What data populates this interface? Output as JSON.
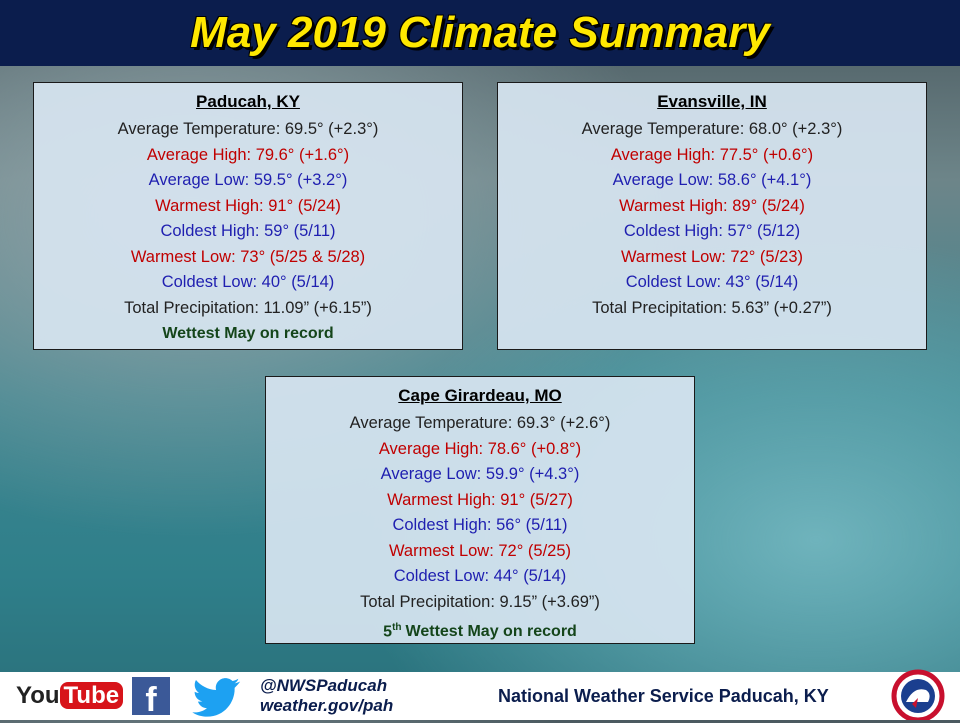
{
  "header": {
    "title": "May 2019 Climate Summary"
  },
  "stations": [
    {
      "name": "Paducah, KY",
      "lines": [
        {
          "text": "Average Temperature: 69.5° (+2.3°)",
          "color": "#222222"
        },
        {
          "text": "Average High: 79.6° (+1.6°)",
          "color": "#c00000"
        },
        {
          "text": "Average Low: 59.5° (+3.2°)",
          "color": "#1f1fb0"
        },
        {
          "text": "Warmest High: 91° (5/24)",
          "color": "#c00000"
        },
        {
          "text": "Coldest High: 59° (5/11)",
          "color": "#1f1fb0"
        },
        {
          "text": "Warmest Low: 73° (5/25 & 5/28)",
          "color": "#c00000"
        },
        {
          "text": "Coldest Low: 40° (5/14)",
          "color": "#1f1fb0"
        },
        {
          "text": "Total Precipitation: 11.09” (+6.15”)",
          "color": "#222222"
        }
      ],
      "note": {
        "text": "Wettest May on record",
        "color": "#14451a"
      }
    },
    {
      "name": "Evansville, IN",
      "lines": [
        {
          "text": "Average Temperature: 68.0° (+2.3°)",
          "color": "#222222"
        },
        {
          "text": "Average High: 77.5° (+0.6°)",
          "color": "#c00000"
        },
        {
          "text": "Average Low: 58.6° (+4.1°)",
          "color": "#1f1fb0"
        },
        {
          "text": "Warmest High: 89° (5/24)",
          "color": "#c00000"
        },
        {
          "text": "Coldest High: 57° (5/12)",
          "color": "#1f1fb0"
        },
        {
          "text": "Warmest Low: 72° (5/23)",
          "color": "#c00000"
        },
        {
          "text": "Coldest Low: 43° (5/14)",
          "color": "#1f1fb0"
        },
        {
          "text": "Total Precipitation: 5.63” (+0.27”)",
          "color": "#222222"
        }
      ]
    },
    {
      "name": "Cape Girardeau, MO",
      "lines": [
        {
          "text": "Average Temperature: 69.3° (+2.6°)",
          "color": "#222222"
        },
        {
          "text": "Average High: 78.6° (+0.8°)",
          "color": "#c00000"
        },
        {
          "text": "Average Low: 59.9° (+4.3°)",
          "color": "#1f1fb0"
        },
        {
          "text": "Warmest High: 91° (5/27)",
          "color": "#c00000"
        },
        {
          "text": "Coldest High: 56° (5/11)",
          "color": "#1f1fb0"
        },
        {
          "text": "Warmest Low: 72° (5/25)",
          "color": "#c00000"
        },
        {
          "text": "Coldest Low: 44° (5/14)",
          "color": "#1f1fb0"
        },
        {
          "text": "Total Precipitation: 9.15” (+3.69”)",
          "color": "#222222"
        }
      ],
      "note": {
        "rank": "5",
        "rank_suffix": "th",
        "text": "Wettest May on record",
        "color": "#14451a"
      }
    }
  ],
  "footer": {
    "youtube": [
      "You",
      "Tube"
    ],
    "facebook": "f",
    "handle": "@NWSPaducah",
    "site": "weather.gov/pah",
    "office": "National Weather Service Paducah, KY"
  }
}
